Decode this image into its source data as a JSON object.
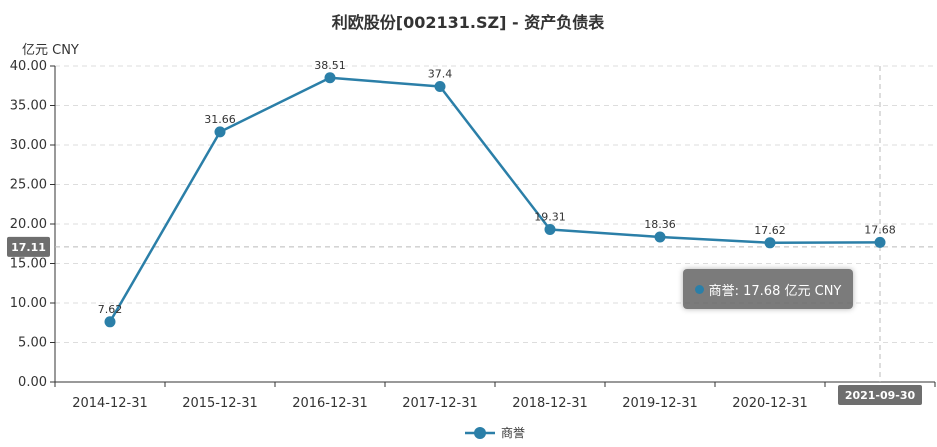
{
  "title": "利欧股份[002131.SZ] - 资产负债表",
  "unit_label": "亿元  CNY",
  "y_axis_ticks": [
    "0.00",
    "5.00",
    "10.00",
    "15.00",
    "20.00",
    "25.00",
    "30.00",
    "35.00",
    "40.00"
  ],
  "crosshair": {
    "y_value": 17.11,
    "y_label": "17.11",
    "x_label": "2021-09-30"
  },
  "tooltip": {
    "text": "商誉: 17.68 亿元 CNY"
  },
  "legend": {
    "label": "商誉"
  },
  "colors": {
    "series": "#2b7fa8",
    "grid": "#dddddd",
    "axis": "#333333",
    "badge": "#6e6e6e"
  },
  "chart_data": {
    "type": "line",
    "title": "利欧股份[002131.SZ] - 资产负债表",
    "ylabel": "亿元  CNY",
    "xlabel": "",
    "categories": [
      "2014-12-31",
      "2015-12-31",
      "2016-12-31",
      "2017-12-31",
      "2018-12-31",
      "2019-12-31",
      "2020-12-31",
      "2021-09-30"
    ],
    "series": [
      {
        "name": "商誉",
        "values": [
          7.62,
          31.66,
          38.51,
          37.4,
          19.31,
          18.36,
          17.62,
          17.68
        ],
        "labels": [
          "7.62",
          "31.66",
          "38.51",
          "37.4",
          "19.31",
          "18.36",
          "17.62",
          "17.68"
        ]
      }
    ],
    "ylim": [
      0,
      40
    ],
    "grid": true,
    "legend_position": "bottom"
  }
}
